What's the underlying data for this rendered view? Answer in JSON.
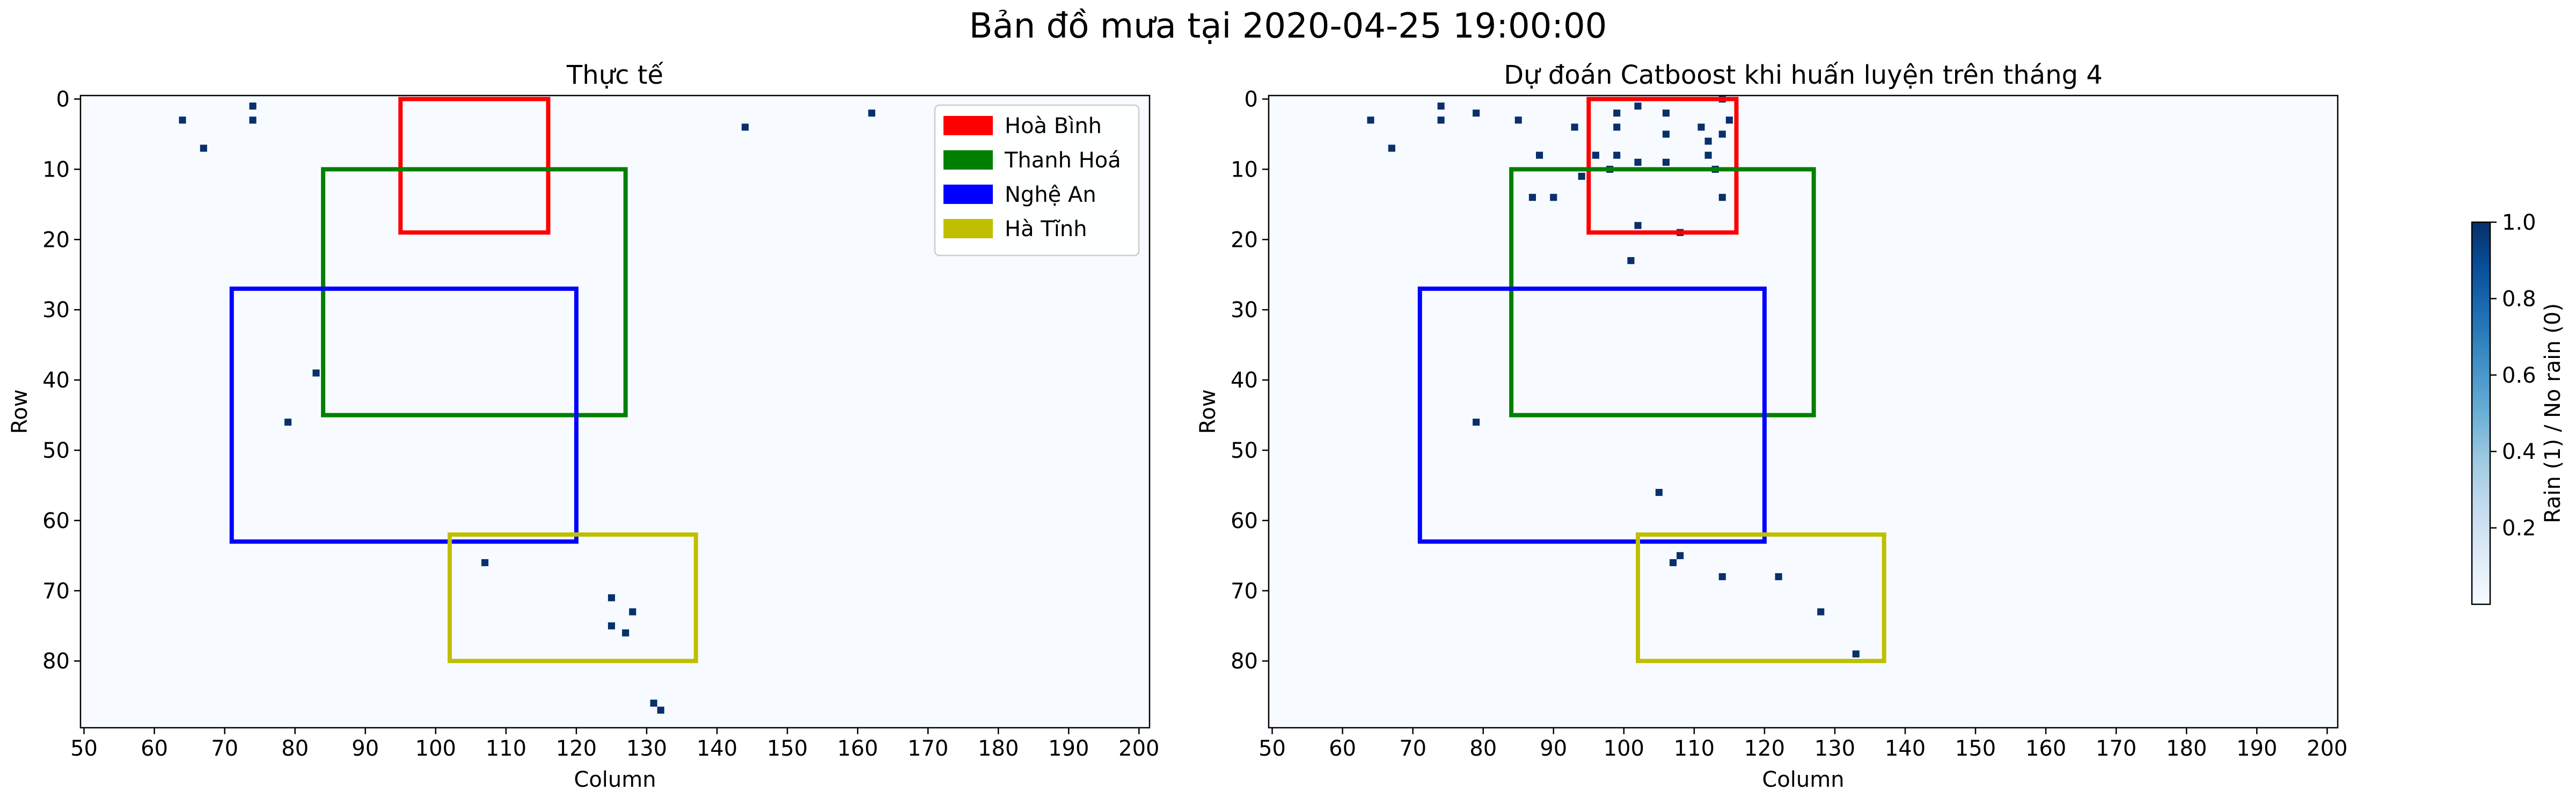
{
  "figure": {
    "title": "Bản đồ mưa tại 2020-04-25 19:00:00"
  },
  "colors": {
    "rain": "#08306b",
    "no_rain": "#f7fbff",
    "cmap_stops": [
      "#f7fbff",
      "#deebf7",
      "#c6dbef",
      "#9ecae1",
      "#6baed6",
      "#4292c6",
      "#2171b5",
      "#08519c",
      "#08306b"
    ]
  },
  "chart_data": [
    {
      "type": "heatmap",
      "title": "Thực tế",
      "xlabel": "Column",
      "ylabel": "Row",
      "xlim": [
        49.5,
        201.5
      ],
      "ylim": [
        89.5,
        -0.5
      ],
      "xticks": [
        50,
        60,
        70,
        80,
        90,
        100,
        110,
        120,
        130,
        140,
        150,
        160,
        170,
        180,
        190,
        200
      ],
      "yticks": [
        0,
        10,
        20,
        30,
        40,
        50,
        60,
        70,
        80
      ],
      "rain_cells": [
        [
          64,
          3
        ],
        [
          67,
          7
        ],
        [
          74,
          1
        ],
        [
          74,
          3
        ],
        [
          144,
          4
        ],
        [
          162,
          2
        ],
        [
          83,
          39
        ],
        [
          79,
          46
        ],
        [
          107,
          66
        ],
        [
          125,
          71
        ],
        [
          128,
          73
        ],
        [
          125,
          75
        ],
        [
          127,
          76
        ],
        [
          131,
          86
        ],
        [
          132,
          87
        ]
      ],
      "regions": [
        {
          "name": "Hoà Bình",
          "color": "#ff0000",
          "x0": 95,
          "x1": 116,
          "y0": 0,
          "y1": 19
        },
        {
          "name": "Thanh Hoá",
          "color": "#008000",
          "x0": 84,
          "x1": 127,
          "y0": 10,
          "y1": 45
        },
        {
          "name": "Nghệ An",
          "color": "#0000ff",
          "x0": 71,
          "x1": 120,
          "y0": 27,
          "y1": 63
        },
        {
          "name": "Hà Tĩnh",
          "color": "#bfbf00",
          "x0": 102,
          "x1": 137,
          "y0": 62,
          "y1": 80
        }
      ],
      "legend": {
        "placement": "top-right",
        "entries": [
          {
            "label": "Hoà Bình",
            "color": "#ff0000"
          },
          {
            "label": "Thanh Hoá",
            "color": "#008000"
          },
          {
            "label": "Nghệ An",
            "color": "#0000ff"
          },
          {
            "label": "Hà Tĩnh",
            "color": "#bfbf00"
          }
        ]
      }
    },
    {
      "type": "heatmap",
      "title": "Dự đoán Catboost khi huấn luyện trên tháng 4",
      "xlabel": "Column",
      "ylabel": "Row",
      "xlim": [
        49.5,
        201.5
      ],
      "ylim": [
        89.5,
        -0.5
      ],
      "xticks": [
        50,
        60,
        70,
        80,
        90,
        100,
        110,
        120,
        130,
        140,
        150,
        160,
        170,
        180,
        190,
        200
      ],
      "yticks": [
        0,
        10,
        20,
        30,
        40,
        50,
        60,
        70,
        80
      ],
      "rain_cells": [
        [
          64,
          3
        ],
        [
          67,
          7
        ],
        [
          74,
          1
        ],
        [
          74,
          3
        ],
        [
          79,
          2
        ],
        [
          85,
          3
        ],
        [
          88,
          8
        ],
        [
          87,
          14
        ],
        [
          90,
          14
        ],
        [
          93,
          4
        ],
        [
          94,
          11
        ],
        [
          96,
          8
        ],
        [
          98,
          10
        ],
        [
          99,
          2
        ],
        [
          99,
          4
        ],
        [
          99,
          8
        ],
        [
          102,
          1
        ],
        [
          102,
          9
        ],
        [
          102,
          18
        ],
        [
          101,
          23
        ],
        [
          106,
          2
        ],
        [
          106,
          5
        ],
        [
          106,
          9
        ],
        [
          108,
          19
        ],
        [
          111,
          4
        ],
        [
          112,
          8
        ],
        [
          112,
          6
        ],
        [
          113,
          10
        ],
        [
          114,
          5
        ],
        [
          114,
          14
        ],
        [
          114,
          0
        ],
        [
          115,
          3
        ],
        [
          79,
          46
        ],
        [
          105,
          56
        ],
        [
          107,
          66
        ],
        [
          108,
          65
        ],
        [
          114,
          68
        ],
        [
          122,
          68
        ],
        [
          128,
          73
        ],
        [
          133,
          79
        ]
      ],
      "regions": [
        {
          "name": "Hoà Bình",
          "color": "#ff0000",
          "x0": 95,
          "x1": 116,
          "y0": 0,
          "y1": 19
        },
        {
          "name": "Thanh Hoá",
          "color": "#008000",
          "x0": 84,
          "x1": 127,
          "y0": 10,
          "y1": 45
        },
        {
          "name": "Nghệ An",
          "color": "#0000ff",
          "x0": 71,
          "x1": 120,
          "y0": 27,
          "y1": 63
        },
        {
          "name": "Hà Tĩnh",
          "color": "#bfbf00",
          "x0": 102,
          "x1": 137,
          "y0": 62,
          "y1": 80
        }
      ]
    }
  ],
  "colorbar": {
    "label": "Rain (1) / No rain (0)",
    "range": [
      0,
      1
    ],
    "ticks": [
      0.2,
      0.4,
      0.6,
      0.8,
      1.0
    ],
    "tick_labels": [
      "0.2",
      "0.4",
      "0.6",
      "0.8",
      "1.0"
    ]
  }
}
